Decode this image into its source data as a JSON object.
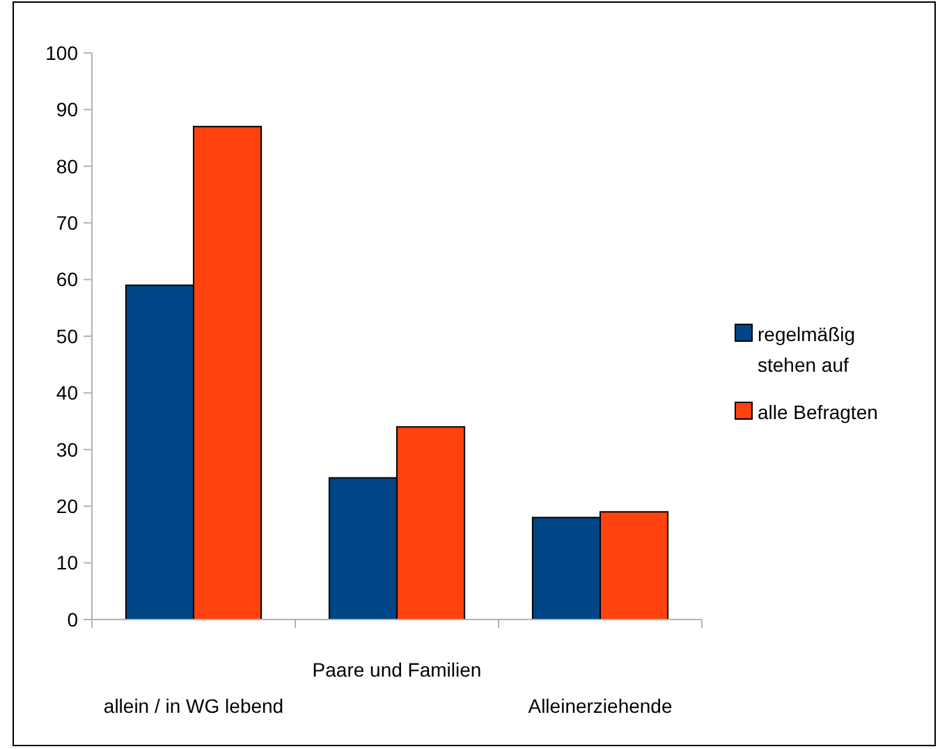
{
  "chart_data": {
    "type": "bar",
    "categories": [
      "allein / in WG lebend",
      "Paare und Familien",
      "Alleinerziehende"
    ],
    "series": [
      {
        "name": "regelmäßig stehen auf",
        "color": "#004586",
        "values": [
          59,
          25,
          18
        ]
      },
      {
        "name": "alle Befragten",
        "color": "#ff420e",
        "values": [
          87,
          34,
          19
        ]
      }
    ],
    "ylim": [
      0,
      100
    ],
    "yticks": [
      0,
      10,
      20,
      30,
      40,
      50,
      60,
      70,
      80,
      90,
      100
    ],
    "grid": false,
    "legend": "right"
  }
}
